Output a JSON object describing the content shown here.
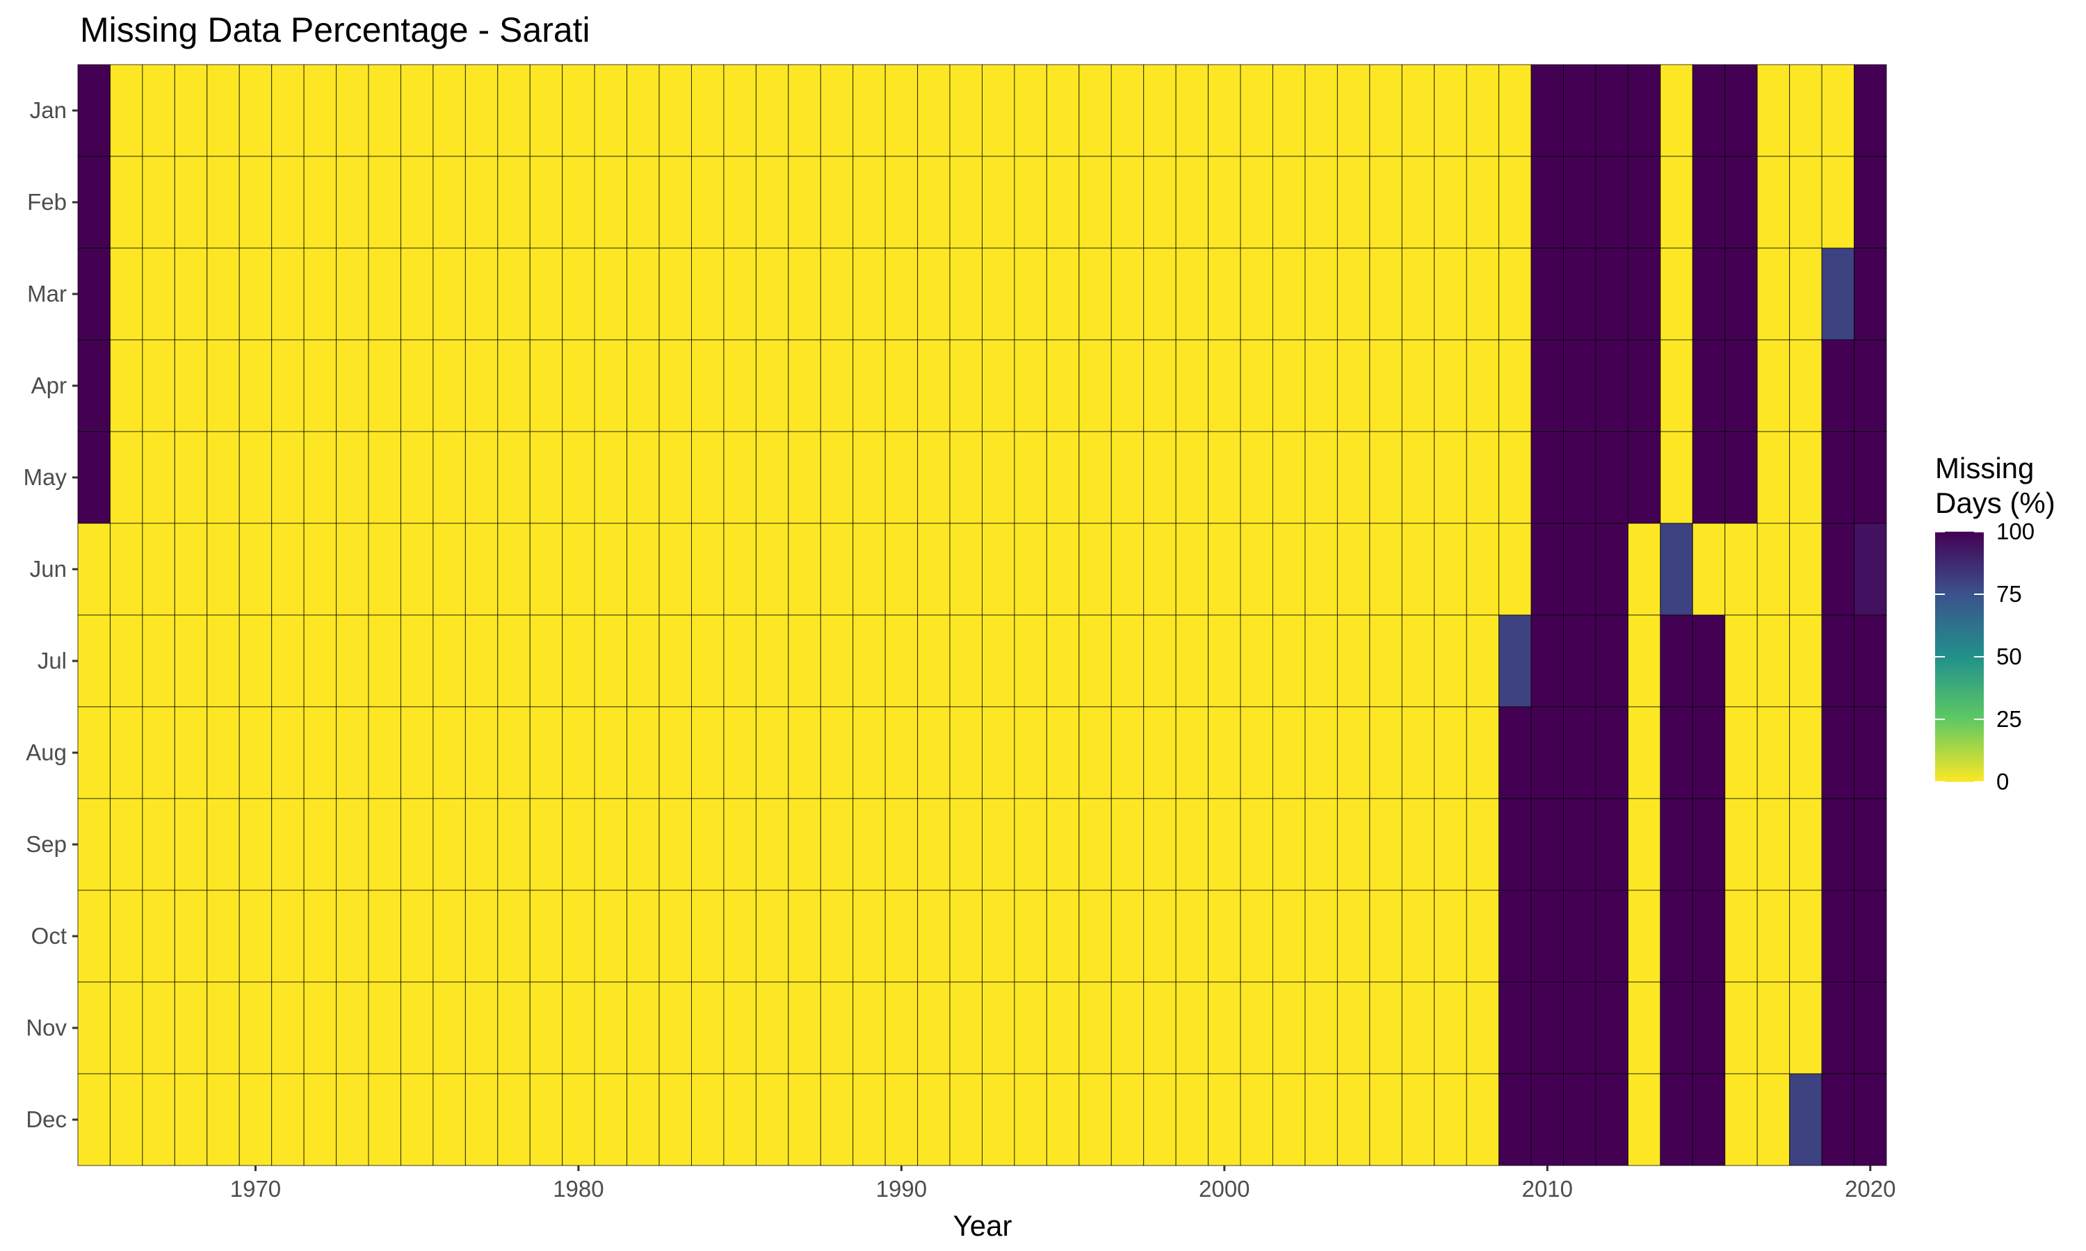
{
  "chart_data": {
    "type": "heatmap",
    "title": "Missing Data Percentage - Sarati",
    "xlabel": "Year",
    "ylabel": "",
    "x_ticks": [
      1970,
      1980,
      1990,
      2000,
      2010,
      2020
    ],
    "years": [
      1965,
      1966,
      1967,
      1968,
      1969,
      1970,
      1971,
      1972,
      1973,
      1974,
      1975,
      1976,
      1977,
      1978,
      1979,
      1980,
      1981,
      1982,
      1983,
      1984,
      1985,
      1986,
      1987,
      1988,
      1989,
      1990,
      1991,
      1992,
      1993,
      1994,
      1995,
      1996,
      1997,
      1998,
      1999,
      2000,
      2001,
      2002,
      2003,
      2004,
      2005,
      2006,
      2007,
      2008,
      2009,
      2010,
      2011,
      2012,
      2013,
      2014,
      2015,
      2016,
      2017,
      2018,
      2019,
      2020
    ],
    "months": [
      "Jan",
      "Feb",
      "Mar",
      "Apr",
      "May",
      "Jun",
      "Jul",
      "Aug",
      "Sep",
      "Oct",
      "Nov",
      "Dec"
    ],
    "default_value": 0,
    "values_by_year": {
      "1965": [
        100,
        100,
        100,
        100,
        100,
        0,
        0,
        0,
        0,
        0,
        0,
        0
      ],
      "2009": [
        0,
        0,
        0,
        0,
        0,
        0,
        80,
        100,
        100,
        100,
        100,
        100
      ],
      "2010": [
        100,
        100,
        100,
        100,
        100,
        100,
        100,
        100,
        100,
        100,
        100,
        100
      ],
      "2011": [
        100,
        100,
        100,
        100,
        100,
        100,
        100,
        100,
        100,
        100,
        100,
        100
      ],
      "2012": [
        100,
        100,
        100,
        100,
        100,
        100,
        100,
        100,
        100,
        100,
        100,
        100
      ],
      "2013": [
        100,
        100,
        100,
        100,
        100,
        0,
        0,
        0,
        0,
        0,
        0,
        0
      ],
      "2014": [
        0,
        0,
        0,
        0,
        0,
        80,
        100,
        100,
        100,
        100,
        100,
        100
      ],
      "2015": [
        100,
        100,
        100,
        100,
        100,
        0,
        100,
        100,
        100,
        100,
        100,
        100
      ],
      "2016": [
        100,
        100,
        100,
        100,
        100,
        0,
        0,
        0,
        0,
        0,
        0,
        0
      ],
      "2018": [
        0,
        0,
        0,
        0,
        0,
        0,
        0,
        0,
        0,
        0,
        0,
        80
      ],
      "2019": [
        0,
        0,
        80,
        100,
        100,
        100,
        100,
        100,
        100,
        100,
        100,
        100
      ],
      "2020": [
        100,
        100,
        100,
        100,
        100,
        95,
        100,
        100,
        100,
        100,
        100,
        100
      ]
    },
    "legend": {
      "title_lines": [
        "Missing",
        "Days (%)"
      ],
      "ticks": [
        100,
        75,
        50,
        25,
        0
      ],
      "placement": "right",
      "colormap": "viridis, reversed (0 = yellow, 100 = dark purple)"
    },
    "colors": {
      "low": "#fde725",
      "high": "#440154",
      "grid_line": "#000000",
      "background": "#ffffff"
    },
    "grid": false
  }
}
